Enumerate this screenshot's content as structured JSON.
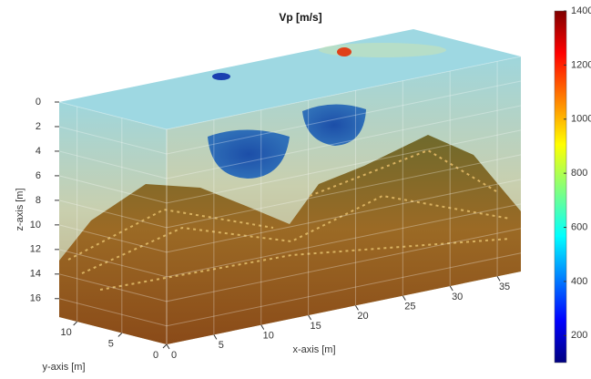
{
  "chart_data": {
    "type": "volume3d",
    "title": "Vp [m/s]",
    "xlabel": "x-axis [m]",
    "ylabel": "y-axis [m]",
    "zlabel": "z-axis [m]",
    "xlim": [
      0,
      37.5
    ],
    "xticks": [
      0,
      5,
      10,
      15,
      20,
      25,
      30,
      35
    ],
    "ylim": [
      0,
      12
    ],
    "yticks": [
      0,
      5,
      10
    ],
    "zlim": [
      0,
      17.5
    ],
    "zticks": [
      0,
      2,
      4,
      6,
      8,
      10,
      12,
      14,
      16
    ],
    "zdir": "reverse",
    "grid": true,
    "colorbar": {
      "colormap": "jet",
      "lim": [
        100,
        1400
      ],
      "ticks": [
        200,
        400,
        600,
        800,
        1000,
        1200,
        1400
      ]
    }
  }
}
